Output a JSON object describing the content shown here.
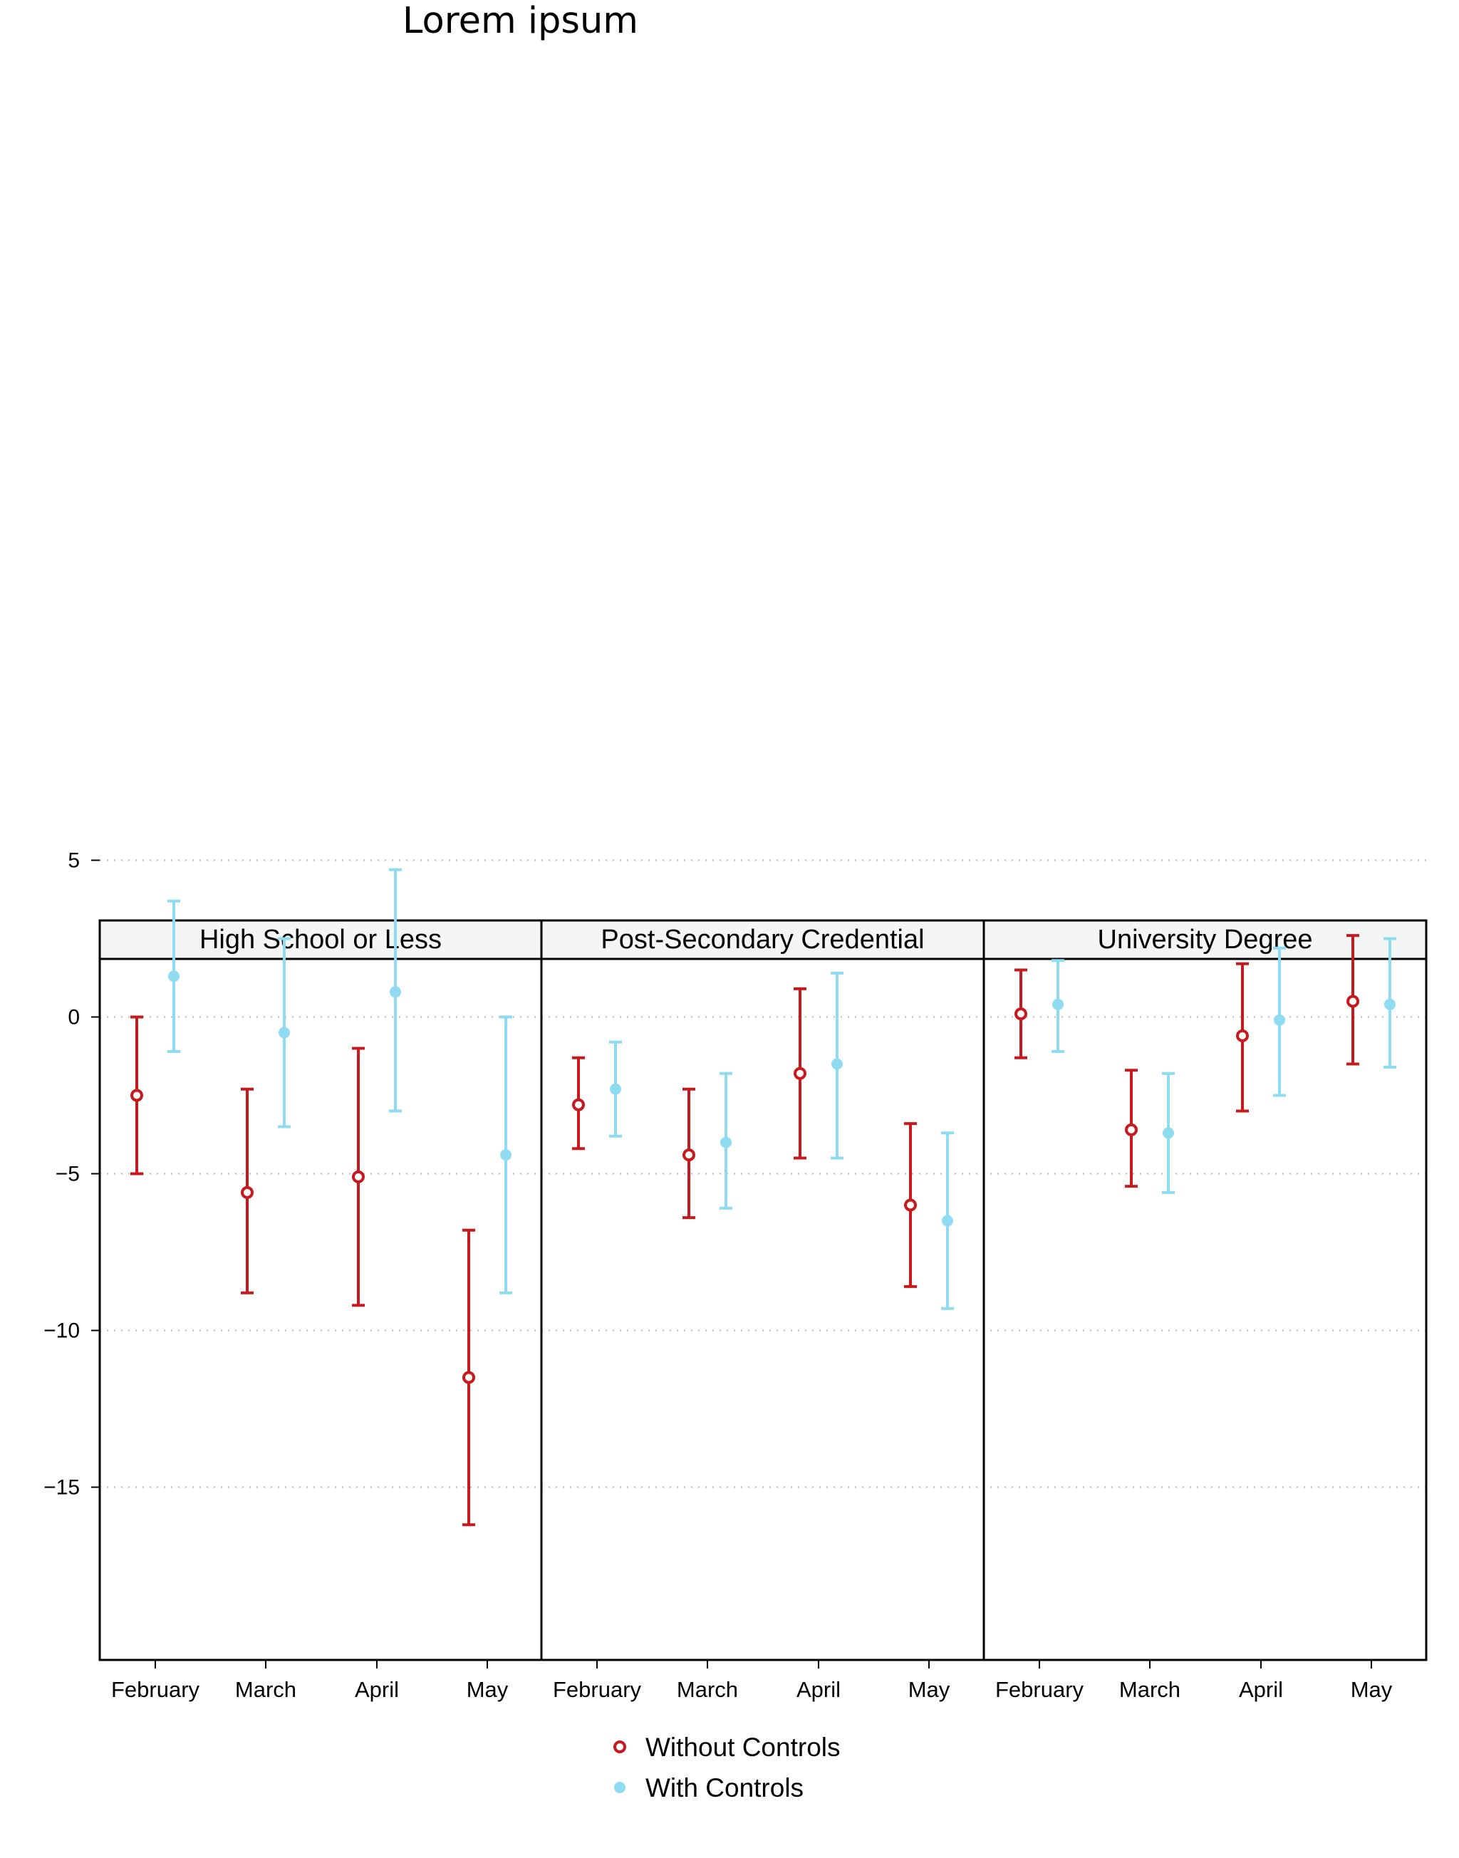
{
  "page": {
    "title": "Lorem ipsum"
  },
  "colors": {
    "without_controls": "#c8191e",
    "with_controls": "#8fdcf2",
    "strip_bg": "#f4f6f6",
    "grid": "#b8b8b8"
  },
  "chart_data": {
    "type": "scatter",
    "subtype": "point-with-error-bars, faceted",
    "categories": [
      "February",
      "March",
      "April",
      "May"
    ],
    "y_ticks": [
      5,
      0,
      -5,
      -10,
      -15
    ],
    "y_tick_labels": [
      "5",
      "0",
      "−5",
      "−10",
      "−15"
    ],
    "ylim": [
      -16.7,
      6.3
    ],
    "grid": "horizontal dotted",
    "legend_position": "bottom-center",
    "panels": [
      {
        "title": "High School or Less",
        "series": [
          {
            "name": "Without Controls",
            "y": [
              -2.5,
              -5.6,
              -5.1,
              -11.5
            ],
            "lo": [
              -5.0,
              -8.8,
              -9.2,
              -16.2
            ],
            "hi": [
              0.0,
              -2.3,
              -1.0,
              -6.8
            ]
          },
          {
            "name": "With Controls",
            "y": [
              1.3,
              -0.5,
              0.8,
              -4.4
            ],
            "lo": [
              -1.1,
              -3.5,
              -3.0,
              -8.8
            ],
            "hi": [
              3.7,
              2.5,
              4.7,
              0.0
            ]
          }
        ]
      },
      {
        "title": "Post-Secondary Credential",
        "series": [
          {
            "name": "Without Controls",
            "y": [
              -2.8,
              -4.4,
              -1.8,
              -6.0
            ],
            "lo": [
              -4.2,
              -6.4,
              -4.5,
              -8.6
            ],
            "hi": [
              -1.3,
              -2.3,
              0.9,
              -3.4
            ]
          },
          {
            "name": "With Controls",
            "y": [
              -2.3,
              -4.0,
              -1.5,
              -6.5
            ],
            "lo": [
              -3.8,
              -6.1,
              -4.5,
              -9.3
            ],
            "hi": [
              -0.8,
              -1.8,
              1.4,
              -3.7
            ]
          }
        ]
      },
      {
        "title": "University Degree",
        "series": [
          {
            "name": "Without Controls",
            "y": [
              0.1,
              -3.6,
              -0.6,
              0.5
            ],
            "lo": [
              -1.3,
              -5.4,
              -3.0,
              -1.5
            ],
            "hi": [
              1.5,
              -1.7,
              1.7,
              2.6
            ]
          },
          {
            "name": "With Controls",
            "y": [
              0.4,
              -3.7,
              -0.1,
              0.4
            ],
            "lo": [
              -1.1,
              -5.6,
              -2.5,
              -1.6
            ],
            "hi": [
              1.8,
              -1.8,
              2.2,
              2.5
            ]
          }
        ]
      }
    ],
    "legend": [
      {
        "name": "Without Controls",
        "marker": "hollow-circle"
      },
      {
        "name": "With Controls",
        "marker": "filled-circle"
      }
    ]
  }
}
